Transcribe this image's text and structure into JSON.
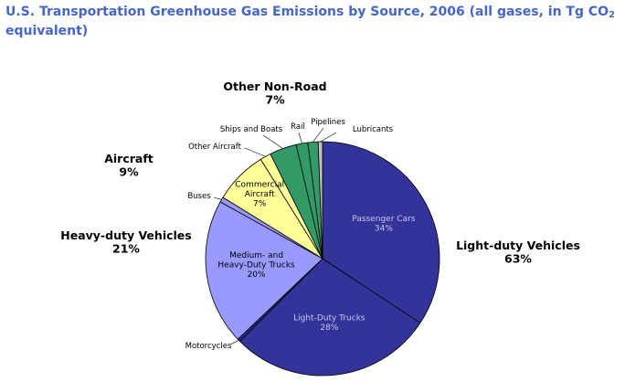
{
  "chart_data": {
    "type": "pie",
    "title": "U.S. Transportation Greenhouse Gas Emissions by Source, 2006 (all gases, in Tg CO",
    "title_sub": "2",
    "title_end": " equivalent)",
    "slices": [
      {
        "name": "Passenger Cars",
        "label": "34%",
        "value": 34.0,
        "color": "#333399",
        "text_color": "#c8c8f0"
      },
      {
        "name": "Light-Duty Trucks",
        "label": "28%",
        "value": 28.0,
        "color": "#333399",
        "text_color": "#c8c8f0"
      },
      {
        "name": "Motorcycles",
        "label": "",
        "value": 0.4,
        "color": "#2a2a80",
        "text_color": "#000000"
      },
      {
        "name": "Medium- and Heavy-Duty Trucks",
        "label": "20%",
        "value": 20.0,
        "color": "#9999ff",
        "text_color": "#000000"
      },
      {
        "name": "Buses",
        "label": "",
        "value": 0.7,
        "color": "#9999ff",
        "text_color": "#000000"
      },
      {
        "name": "Commercial Aircraft",
        "label": "7%",
        "value": 7.3,
        "color": "#ffff99",
        "text_color": "#000000"
      },
      {
        "name": "Other Aircraft",
        "label": "",
        "value": 1.5,
        "color": "#ffff99",
        "text_color": "#000000"
      },
      {
        "name": "Ships and Boats",
        "label": "",
        "value": 3.7,
        "color": "#339966",
        "text_color": "#000000"
      },
      {
        "name": "Rail",
        "label": "",
        "value": 1.6,
        "color": "#339966",
        "text_color": "#000000"
      },
      {
        "name": "Pipelines",
        "label": "",
        "value": 1.4,
        "color": "#339966",
        "text_color": "#000000"
      },
      {
        "name": "Lubricants",
        "label": "",
        "value": 0.6,
        "color": "#c0c0c0",
        "text_color": "#000000"
      }
    ],
    "groups": [
      {
        "name": "Light-duty Vehicles",
        "label": "63%"
      },
      {
        "name": "Heavy-duty Vehicles",
        "label": "21%"
      },
      {
        "name": "Aircraft",
        "label": "9%"
      },
      {
        "name": "Other Non-Road",
        "label": "7%"
      }
    ],
    "small_slice_labels": [
      "Motorcycles",
      "Buses",
      "Other Aircraft",
      "Ships and Boats",
      "Rail",
      "Pipelines",
      "Lubricants"
    ],
    "legend": "none"
  }
}
